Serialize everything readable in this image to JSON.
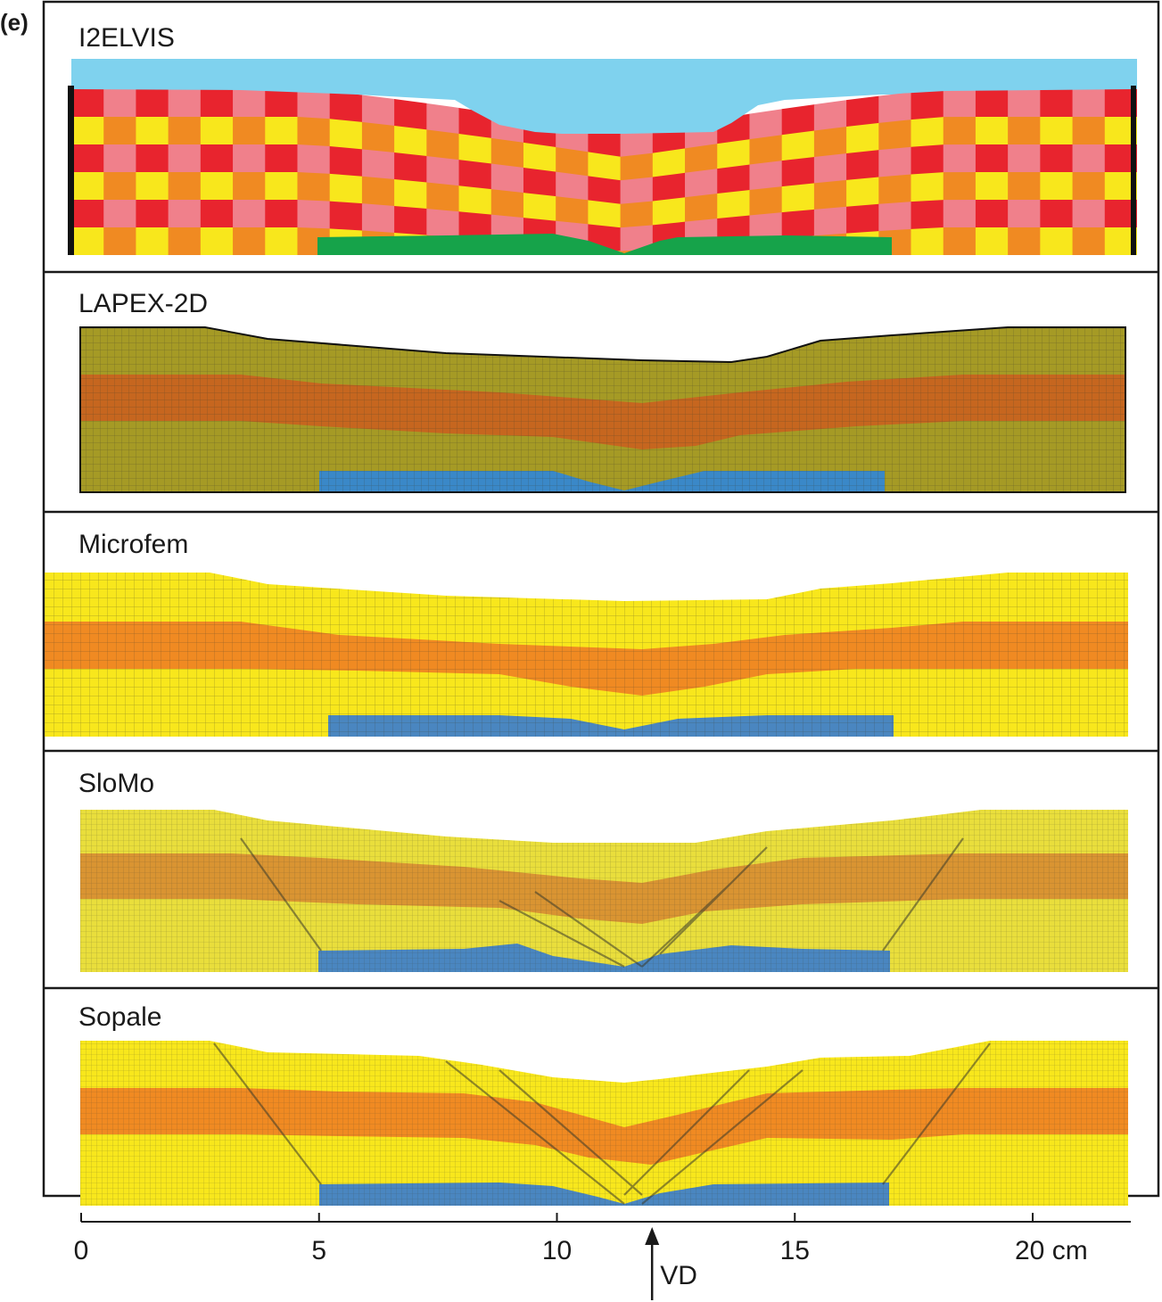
{
  "figure": {
    "panel_letter": "(e)",
    "panels": [
      {
        "label": "I2ELVIS"
      },
      {
        "label": "LAPEX-2D"
      },
      {
        "label": "Microfem"
      },
      {
        "label": "SloMo"
      },
      {
        "label": "Sopale"
      }
    ],
    "axis": {
      "ticks": [
        {
          "value": 0,
          "label": "0"
        },
        {
          "value": 5,
          "label": "5"
        },
        {
          "value": 10,
          "label": "10"
        },
        {
          "value": 15,
          "label": "15"
        },
        {
          "value": 20,
          "label": "20 cm"
        }
      ],
      "range": [
        0,
        22
      ],
      "marker": {
        "value": 12,
        "label": "VD"
      }
    },
    "colors": {
      "water": "#7fd2ee",
      "pink": "#f0808b",
      "red": "#e8242e",
      "yellow": "#f8e71c",
      "orange": "#f08a22",
      "green": "#16a34a",
      "olive": "#a59a25",
      "lapex_orange": "#c6661f",
      "blue_lapex": "#3a88c8",
      "blue": "#4a86c0",
      "slomo_yellow": "#e9de3c",
      "slomo_orange": "#d99432"
    }
  }
}
